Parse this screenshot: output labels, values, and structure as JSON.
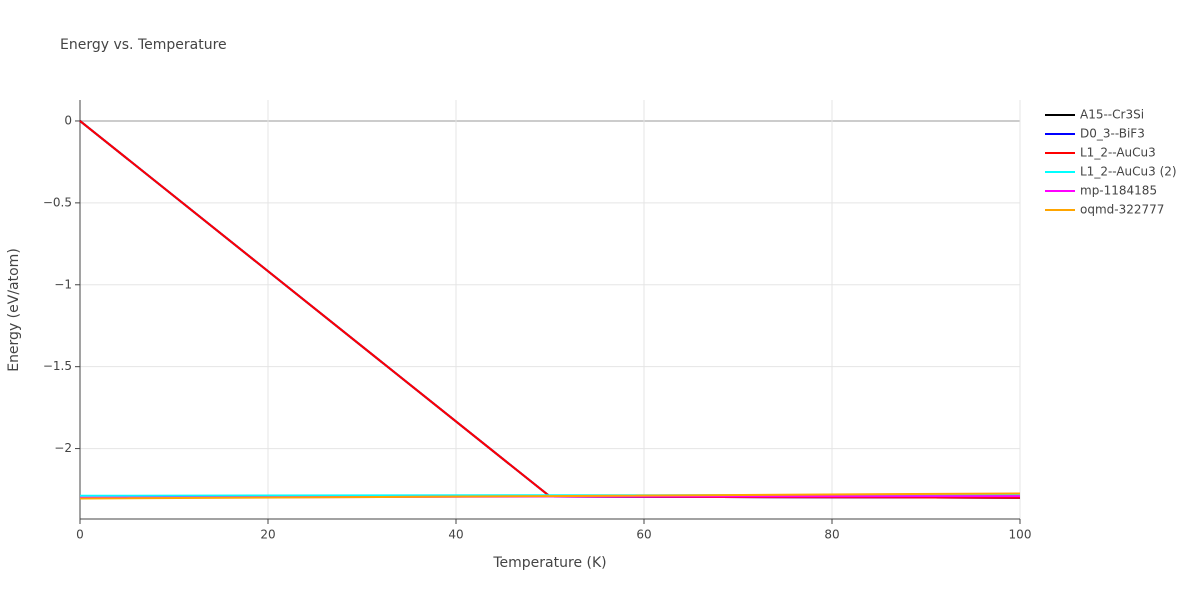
{
  "chart_data": {
    "type": "line",
    "title": "Energy vs. Temperature",
    "x_label": "Temperature (K)",
    "y_label": "Energy (eV/atom)",
    "x": [
      0,
      50,
      100
    ],
    "xlim": [
      0,
      100
    ],
    "xticks": [
      0,
      20,
      40,
      60,
      80,
      100
    ],
    "ylim": [
      -2.43,
      0.128
    ],
    "yticks": [
      {
        "value": -2,
        "label": "−2"
      },
      {
        "value": -1.5,
        "label": "−1.5"
      },
      {
        "value": -1,
        "label": "−1"
      },
      {
        "value": -0.5,
        "label": "−0.5"
      },
      0
    ],
    "grid": true,
    "legend": "right",
    "series": [
      {
        "name": "A15--Cr3Si",
        "color": "#000000",
        "values": [
          0,
          -2.293,
          -2.3
        ]
      },
      {
        "name": "D0_3--BiF3",
        "color": "#0000ff",
        "values": [
          0,
          -2.293,
          -2.3
        ]
      },
      {
        "name": "L1_2--AuCu3",
        "color": "#ff0000",
        "values": [
          0,
          -2.293,
          -2.3
        ]
      },
      {
        "name": "L1_2--AuCu3 (2)",
        "color": "#00ffff",
        "values": [
          -2.288,
          -2.285,
          -2.283
        ]
      },
      {
        "name": "mp-1184185",
        "color": "#ff00ff",
        "values": [
          -2.3,
          -2.293,
          -2.29
        ]
      },
      {
        "name": "oqmd-322777",
        "color": "#ffa500",
        "values": [
          -2.305,
          -2.29,
          -2.274
        ]
      }
    ]
  }
}
